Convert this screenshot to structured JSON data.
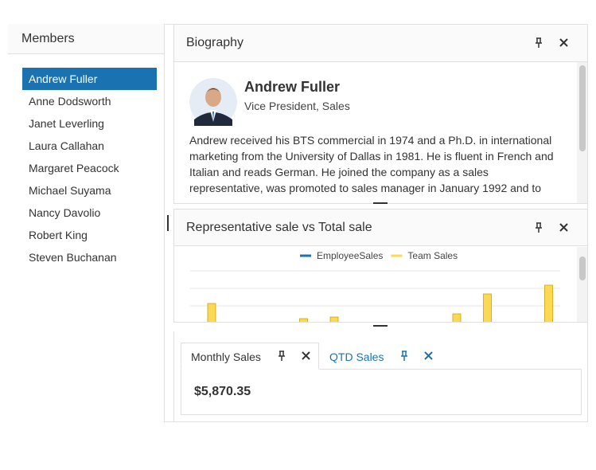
{
  "members": {
    "title": "Members",
    "items": [
      "Andrew Fuller",
      "Anne Dodsworth",
      "Janet Leverling",
      "Laura Callahan",
      "Margaret Peacock",
      "Michael Suyama",
      "Nancy Davolio",
      "Robert King",
      "Steven Buchanan"
    ],
    "selected": 0
  },
  "biography": {
    "title": "Biography",
    "name": "Andrew Fuller",
    "role": "Vice President, Sales",
    "text": "Andrew received his BTS commercial in 1974 and a Ph.D. in international marketing from the University of Dallas in 1981. He is fluent in French and Italian and reads German. He joined the company as a sales representative, was promoted to sales manager in January 1992 and to"
  },
  "chart": {
    "type": "bar",
    "title": "Representative sale vs Total sale",
    "categories": [
      null,
      null,
      null,
      null,
      null,
      null,
      null,
      null,
      null,
      null,
      null,
      null
    ],
    "series": [
      {
        "name": "EmployeeSales",
        "color": "#1a73b0"
      },
      {
        "name": "Team Sales",
        "color": "#fdd855",
        "values": [
          24,
          0,
          0,
          5,
          7,
          0,
          0,
          0,
          11,
          36,
          0,
          47
        ]
      }
    ],
    "ylim": [
      0,
      70
    ]
  },
  "tabs": {
    "items": [
      "Monthly Sales",
      "QTD Sales"
    ],
    "active": 0,
    "content": "$5,870.35"
  }
}
